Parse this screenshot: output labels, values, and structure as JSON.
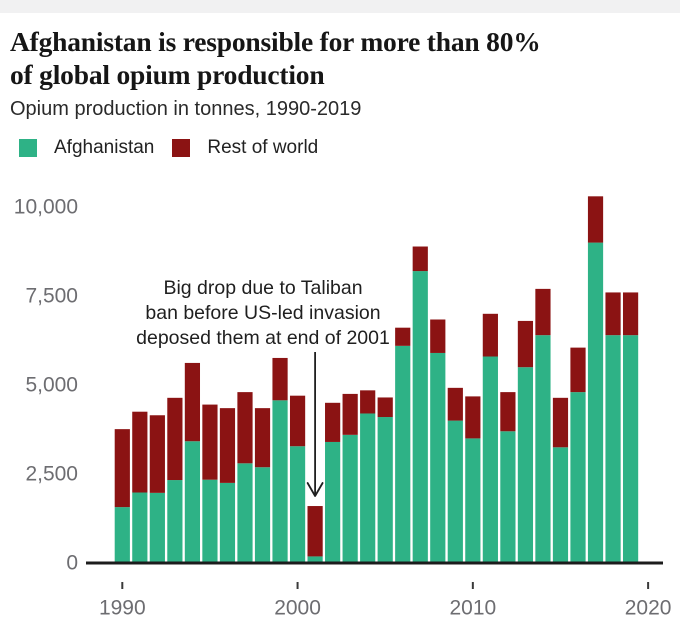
{
  "page": {
    "top_strip_color": "#f1f1f2",
    "background": "#ffffff"
  },
  "header": {
    "title_lines": [
      "Afghanistan is responsible for more than 80%",
      "of global opium production"
    ],
    "subtitle": "Opium production in tonnes, 1990-2019"
  },
  "legend": {
    "items": [
      {
        "label": "Afghanistan",
        "color": "#2eb286"
      },
      {
        "label": "Rest of world",
        "color": "#8b1313"
      }
    ]
  },
  "chart_data": {
    "type": "bar",
    "stacked": true,
    "title": "Afghanistan is responsible for more than 80% of global opium production",
    "subtitle": "Opium production in tonnes, 1990-2019",
    "xlabel": "",
    "ylabel": "",
    "units": "tonnes",
    "ylim": [
      0,
      10000
    ],
    "grid": false,
    "legend_position": "top-left",
    "categories": [
      1990,
      1991,
      1992,
      1993,
      1994,
      1995,
      1996,
      1997,
      1998,
      1999,
      2000,
      2001,
      2002,
      2003,
      2004,
      2005,
      2006,
      2007,
      2008,
      2009,
      2010,
      2011,
      2012,
      2013,
      2014,
      2015,
      2016,
      2017,
      2018,
      2019
    ],
    "series": [
      {
        "name": "Afghanistan",
        "color": "#2eb286",
        "values": [
          1570,
          1980,
          1970,
          2330,
          3420,
          2340,
          2250,
          2800,
          2690,
          4570,
          3280,
          185,
          3400,
          3600,
          4200,
          4100,
          6100,
          8200,
          5900,
          4000,
          3500,
          5800,
          3700,
          5500,
          6400,
          3250,
          4800,
          9000,
          6400,
          6400
        ]
      },
      {
        "name": "Rest of world",
        "color": "#8b1313",
        "values": [
          2190,
          2270,
          2180,
          2310,
          2200,
          2110,
          2100,
          2000,
          1660,
          1190,
          1420,
          1415,
          1100,
          1150,
          650,
          550,
          510,
          690,
          940,
          920,
          1180,
          1200,
          1100,
          1300,
          1300,
          1390,
          1250,
          1300,
          1200,
          1200
        ]
      }
    ],
    "y_ticks": [
      {
        "value": 0,
        "label": "0"
      },
      {
        "value": 2500,
        "label": "2,500"
      },
      {
        "value": 5000,
        "label": "5,000"
      },
      {
        "value": 7500,
        "label": "7,500"
      },
      {
        "value": 10000,
        "label": "10,000"
      }
    ],
    "x_ticks": [
      {
        "value": 1990,
        "label": "1990"
      },
      {
        "value": 2000,
        "label": "2000"
      },
      {
        "value": 2010,
        "label": "2010"
      },
      {
        "value": 2020,
        "label": "2020"
      }
    ],
    "annotation": {
      "lines": [
        "Big drop due to Taliban",
        "ban before US-led invasion",
        "deposed them at end of 2001"
      ],
      "target_year": 2001
    },
    "colors": {
      "axis": "#1c1c1c",
      "tick": "#3a3a3a",
      "tick_label": "#6d6d71",
      "annotation_text": "#1f1f1f"
    }
  }
}
